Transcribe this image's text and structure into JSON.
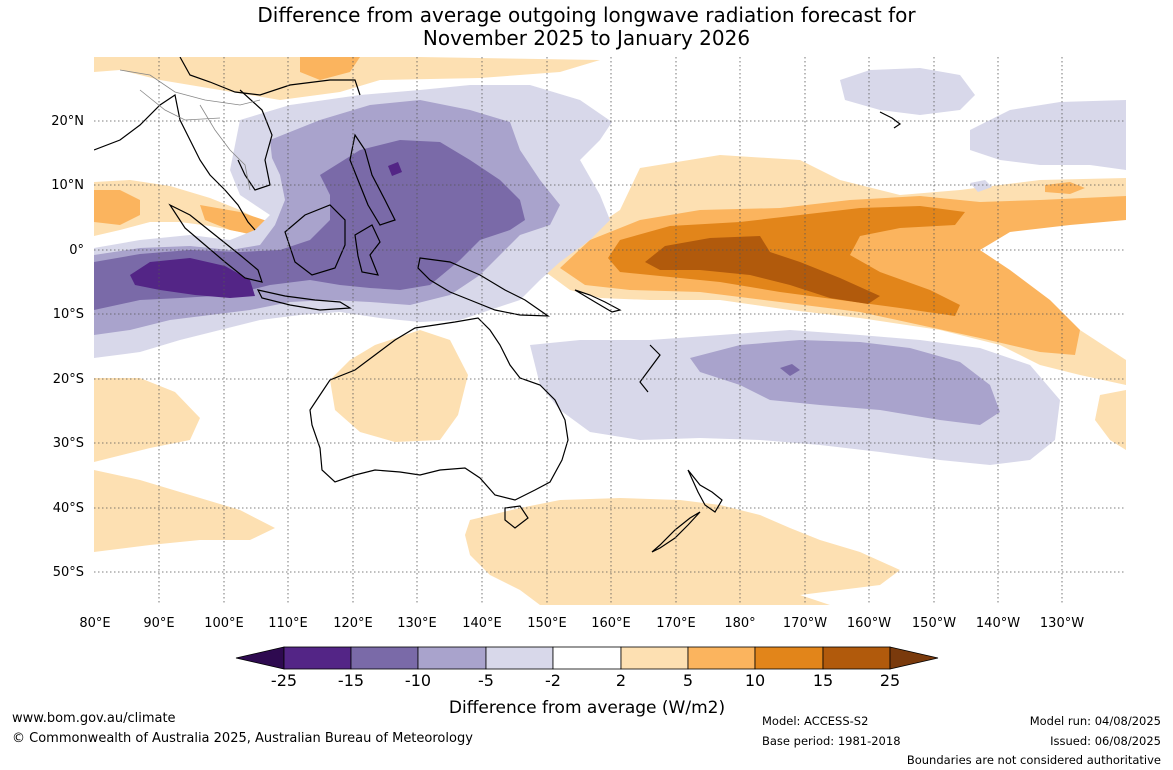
{
  "title_line1": "Difference from average outgoing longwave radiation forecast for",
  "title_line2": "November 2025 to January 2026",
  "lat_labels": [
    "20°N",
    "10°N",
    "0°",
    "10°S",
    "20°S",
    "30°S",
    "40°S",
    "50°S"
  ],
  "lon_labels": [
    "80°E",
    "90°E",
    "100°E",
    "110°E",
    "120°E",
    "130°E",
    "140°E",
    "150°E",
    "160°E",
    "170°E",
    "180°",
    "170°W",
    "160°W",
    "150°W",
    "140°W",
    "130°W"
  ],
  "colorbar": {
    "title": "Difference from average (W/m2)",
    "tick_labels": [
      "-25",
      "-15",
      "-10",
      "-5",
      "-2",
      "2",
      "5",
      "10",
      "15",
      "25"
    ],
    "colors": [
      "#2e0a50",
      "#532586",
      "#7a6aa8",
      "#a9a3cc",
      "#d8d8ea",
      "#ffffff",
      "#fde0b2",
      "#fbb45e",
      "#e2851a",
      "#b15a0c",
      "#7a3a0c"
    ]
  },
  "footer": {
    "url": "www.bom.gov.au/climate",
    "copyright": "© Commonwealth of Australia 2025, Australian Bureau of Meteorology",
    "model": "Model: ACCESS-S2",
    "base_period": "Base period: 1981-2018",
    "model_run": "Model run: 04/08/2025",
    "issued": "Issued: 06/08/2025",
    "disclaimer": "Boundaries are not considered authoritative"
  }
}
